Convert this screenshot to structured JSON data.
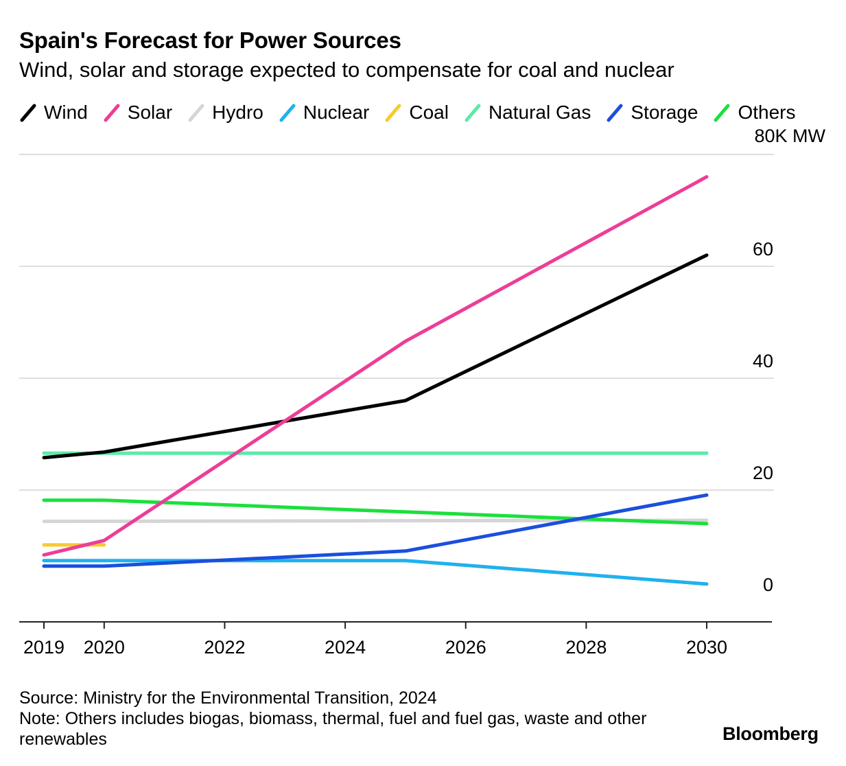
{
  "title": "Spain's Forecast for Power Sources",
  "subtitle": "Wind, solar and storage expected to compensate for coal and nuclear",
  "source": "Source: Ministry for the Environmental Transition, 2024",
  "note": "Note: Others includes biogas, biomass, thermal, fuel and fuel gas, waste and other renewables",
  "brand": "Bloomberg",
  "chart_data": {
    "type": "line",
    "ylabel": "",
    "y_unit_label": "80K MW",
    "ylim": [
      0,
      80
    ],
    "y_ticks": [
      {
        "value": 0,
        "label": "0"
      },
      {
        "value": 20,
        "label": "20"
      },
      {
        "value": 40,
        "label": "40"
      },
      {
        "value": 60,
        "label": "60"
      },
      {
        "value": 80,
        "label": "80K MW"
      }
    ],
    "x_ticks": [
      "2019",
      "2020",
      "2022",
      "2024",
      "2026",
      "2028",
      "2030"
    ],
    "xlim": [
      2019,
      2030.8
    ],
    "grid": true,
    "y_axis_side": "right",
    "legend_position": "top",
    "series": [
      {
        "name": "Hydro",
        "color": "#d5d5d5",
        "x": [
          2019,
          2030
        ],
        "values": [
          14.4,
          14.6
        ]
      },
      {
        "name": "Natural Gas",
        "color": "#5ee8a9",
        "x": [
          2019,
          2030
        ],
        "values": [
          26.6,
          26.6
        ]
      },
      {
        "name": "Others",
        "color": "#1be03c",
        "x": [
          2019,
          2020,
          2030
        ],
        "values": [
          18.2,
          18.2,
          14.0
        ]
      },
      {
        "name": "Coal",
        "color": "#f5cb2e",
        "x": [
          2019,
          2020
        ],
        "values": [
          10.2,
          10.2
        ]
      },
      {
        "name": "Nuclear",
        "color": "#1fb1ee",
        "x": [
          2019,
          2020,
          2025,
          2030
        ],
        "values": [
          7.4,
          7.4,
          7.4,
          3.2
        ]
      },
      {
        "name": "Storage",
        "color": "#1b4fdc",
        "x": [
          2019,
          2020,
          2025,
          2030
        ],
        "values": [
          6.4,
          6.4,
          9.1,
          19.1
        ]
      },
      {
        "name": "Wind",
        "color": "#000000",
        "x": [
          2019,
          2020,
          2025,
          2030
        ],
        "values": [
          25.8,
          26.8,
          36.0,
          62.0
        ]
      },
      {
        "name": "Solar",
        "color": "#ed3d97",
        "x": [
          2019,
          2020,
          2025,
          2030
        ],
        "values": [
          8.4,
          11.0,
          46.6,
          76.0
        ]
      }
    ]
  }
}
